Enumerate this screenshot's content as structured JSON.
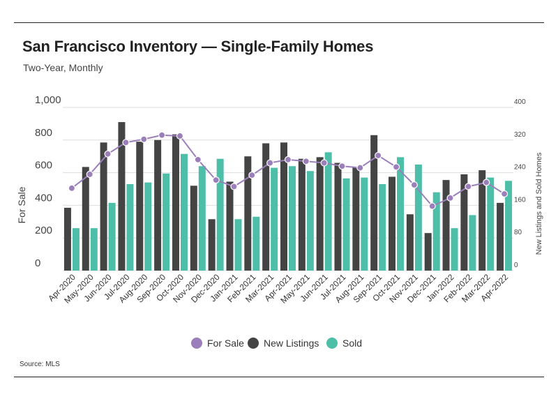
{
  "title": "San Francisco Inventory — Single-Family Homes",
  "subtitle": "Two-Year, Monthly",
  "source": "Source:  MLS",
  "colors": {
    "for_sale": "#9b7fba",
    "new_listings": "#444444",
    "sold": "#4dbfa8",
    "grid": "#dddddd"
  },
  "chart_data": {
    "type": "bar",
    "categories": [
      "Apr-2020",
      "May-2020",
      "Jun-2020",
      "Jul-2020",
      "Aug-2020",
      "Sep-2020",
      "Oct-2020",
      "Nov-2020",
      "Dec-2020",
      "Jan-2021",
      "Feb-2021",
      "Mar-2021",
      "Apr-2021",
      "May-2021",
      "Jun-2021",
      "Jul-2021",
      "Aug-2021",
      "Sep-2021",
      "Oct-2021",
      "Nov-2021",
      "Dec-2021",
      "Jan-2022",
      "Feb-2022",
      "Mar-2022",
      "Apr-2022"
    ],
    "left_axis": {
      "label": "For Sale",
      "ylim": [
        0,
        1000
      ],
      "ticks": [
        "0",
        "200",
        "400",
        "600",
        "800",
        "1,000"
      ]
    },
    "right_axis": {
      "label": "New Listings and Sold Homes",
      "ylim": [
        0,
        400
      ],
      "ticks": [
        "0",
        "80",
        "160",
        "240",
        "320",
        "400"
      ]
    },
    "series": [
      {
        "name": "For Sale",
        "type": "line",
        "axis": "left",
        "values": [
          505,
          590,
          715,
          785,
          805,
          830,
          825,
          680,
          555,
          515,
          585,
          660,
          680,
          670,
          660,
          640,
          630,
          705,
          635,
          525,
          395,
          445,
          515,
          540,
          470
        ]
      },
      {
        "name": "New Listings",
        "type": "bar",
        "axis": "right",
        "values": [
          154,
          254,
          314,
          364,
          316,
          320,
          334,
          208,
          126,
          218,
          280,
          312,
          314,
          274,
          278,
          264,
          254,
          332,
          230,
          138,
          92,
          222,
          236,
          246,
          166
        ]
      },
      {
        "name": "Sold",
        "type": "bar",
        "axis": "right",
        "values": [
          104,
          104,
          166,
          212,
          216,
          238,
          286,
          256,
          274,
          126,
          132,
          252,
          256,
          244,
          290,
          226,
          228,
          212,
          278,
          260,
          192,
          104,
          136,
          228,
          220
        ]
      }
    ],
    "grid": true,
    "legend": "bottom",
    "legend_labels": [
      "For Sale",
      "New Listings",
      "Sold"
    ]
  }
}
